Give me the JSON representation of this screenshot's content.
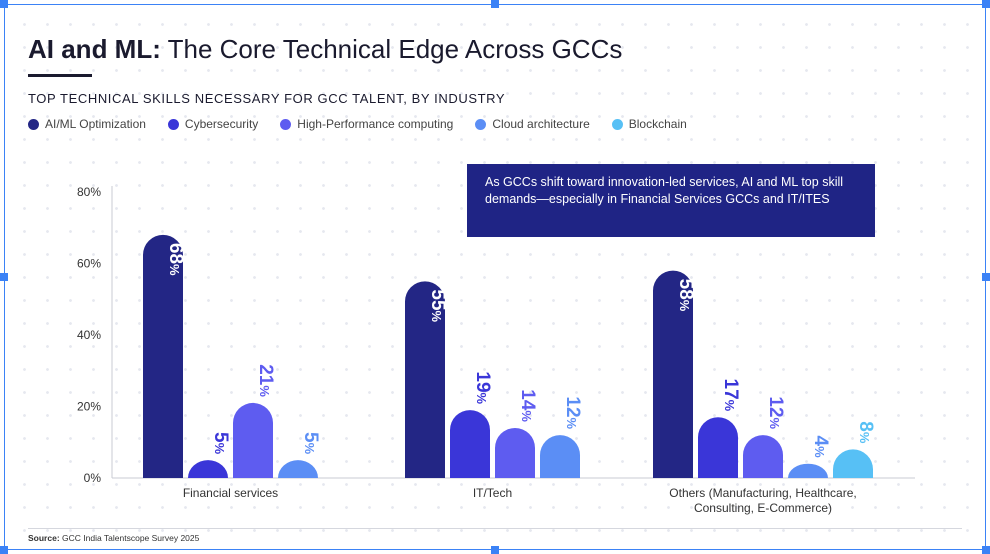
{
  "title": {
    "strong": "AI and ML:",
    "rest": " The Core Technical Edge Across GCCs"
  },
  "subtitle": "TOP TECHNICAL SKILLS NECESSARY FOR GCC TALENT, BY INDUSTRY",
  "callout": "As GCCs shift toward innovation-led services, AI and ML top skill demands—especially in Financial Services GCCs and IT/ITES",
  "source": {
    "label": "Source:",
    "text": " GCC India Talentscope Survey 2025"
  },
  "colors": {
    "ai_ml": "#232685",
    "cyber": "#3a36d8",
    "hpc": "#5e5cf0",
    "cloud": "#5b8ef5",
    "blockchain": "#57c0f5",
    "frame": "#3b82f6"
  },
  "chart_data": {
    "type": "bar",
    "categories": [
      "Financial services",
      "IT/Tech",
      "Others (Manufacturing, Healthcare, Consulting, E-Commerce)"
    ],
    "category_lines": [
      [
        "Financial services"
      ],
      [
        "IT/Tech"
      ],
      [
        "Others (Manufacturing, Healthcare,",
        "Consulting, E-Commerce)"
      ]
    ],
    "series": [
      {
        "name": "AI/ML Optimization",
        "color": "#232685",
        "values": [
          68,
          55,
          58
        ]
      },
      {
        "name": "Cybersecurity",
        "color": "#3a36d8",
        "values": [
          5,
          19,
          17
        ]
      },
      {
        "name": "High-Performance computing",
        "color": "#5e5cf0",
        "values": [
          21,
          14,
          12
        ]
      },
      {
        "name": "Cloud architecture",
        "color": "#5b8ef5",
        "values": [
          5,
          12,
          4
        ]
      },
      {
        "name": "Blockchain",
        "color": "#57c0f5",
        "values": [
          null,
          null,
          8
        ]
      }
    ],
    "y_ticks": [
      0,
      20,
      40,
      60,
      80
    ],
    "y_tick_suffix": "%",
    "ylim": [
      0,
      80
    ],
    "legend_position": "top-left",
    "grid": false
  }
}
